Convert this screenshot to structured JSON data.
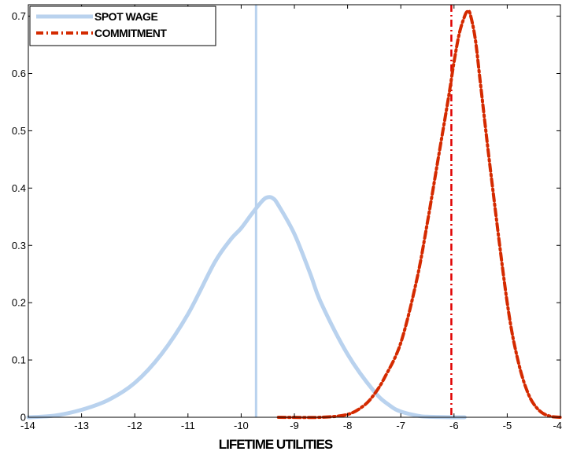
{
  "chart_data": {
    "type": "line",
    "title": "",
    "xlabel": "LIFETIME UTILITIES",
    "ylabel": "",
    "xlim": [
      -14,
      -4
    ],
    "ylim": [
      0,
      0.72
    ],
    "xticks": [
      -14,
      -13,
      -12,
      -11,
      -10,
      -9,
      -8,
      -7,
      -6,
      -5,
      -4
    ],
    "yticks": [
      0,
      0.1,
      0.2,
      0.3,
      0.4,
      0.5,
      0.6,
      0.7
    ],
    "grid": false,
    "legend_position": "top-left",
    "series": [
      {
        "name": "SPOT WAGE",
        "color": "#b9d2ee",
        "style": "solid",
        "x": [
          -14.0,
          -13.5,
          -13.0,
          -12.5,
          -12.0,
          -11.5,
          -11.0,
          -10.5,
          -10.2,
          -10.0,
          -9.8,
          -9.6,
          -9.5,
          -9.4,
          -9.3,
          -9.0,
          -8.7,
          -8.5,
          -8.0,
          -7.5,
          -7.2,
          -7.0,
          -6.7,
          -6.5,
          -6.0,
          -5.8
        ],
        "y": [
          0.0,
          0.003,
          0.013,
          0.03,
          0.06,
          0.11,
          0.18,
          0.27,
          0.31,
          0.33,
          0.355,
          0.378,
          0.384,
          0.382,
          0.37,
          0.32,
          0.25,
          0.2,
          0.11,
          0.045,
          0.02,
          0.01,
          0.003,
          0.001,
          0.0,
          0.0
        ]
      },
      {
        "name": "COMMITMENT",
        "color": "#d42a00",
        "style": "dashdot",
        "x": [
          -9.3,
          -8.5,
          -8.0,
          -7.7,
          -7.5,
          -7.3,
          -7.0,
          -6.7,
          -6.5,
          -6.3,
          -6.1,
          -6.0,
          -5.9,
          -5.8,
          -5.75,
          -5.7,
          -5.6,
          -5.5,
          -5.3,
          -5.0,
          -4.8,
          -4.6,
          -4.4,
          -4.2,
          -4.0
        ],
        "y": [
          0.0,
          0.0,
          0.005,
          0.02,
          0.04,
          0.07,
          0.13,
          0.24,
          0.34,
          0.45,
          0.56,
          0.62,
          0.67,
          0.7,
          0.708,
          0.705,
          0.66,
          0.58,
          0.42,
          0.2,
          0.1,
          0.04,
          0.012,
          0.002,
          0.0
        ]
      }
    ],
    "vertical_lines": [
      {
        "series": "SPOT WAGE",
        "x": -9.72,
        "color": "#b9d2ee",
        "style": "solid"
      },
      {
        "series": "COMMITMENT",
        "x": -6.05,
        "color": "#e00000",
        "style": "dashdot"
      }
    ]
  }
}
